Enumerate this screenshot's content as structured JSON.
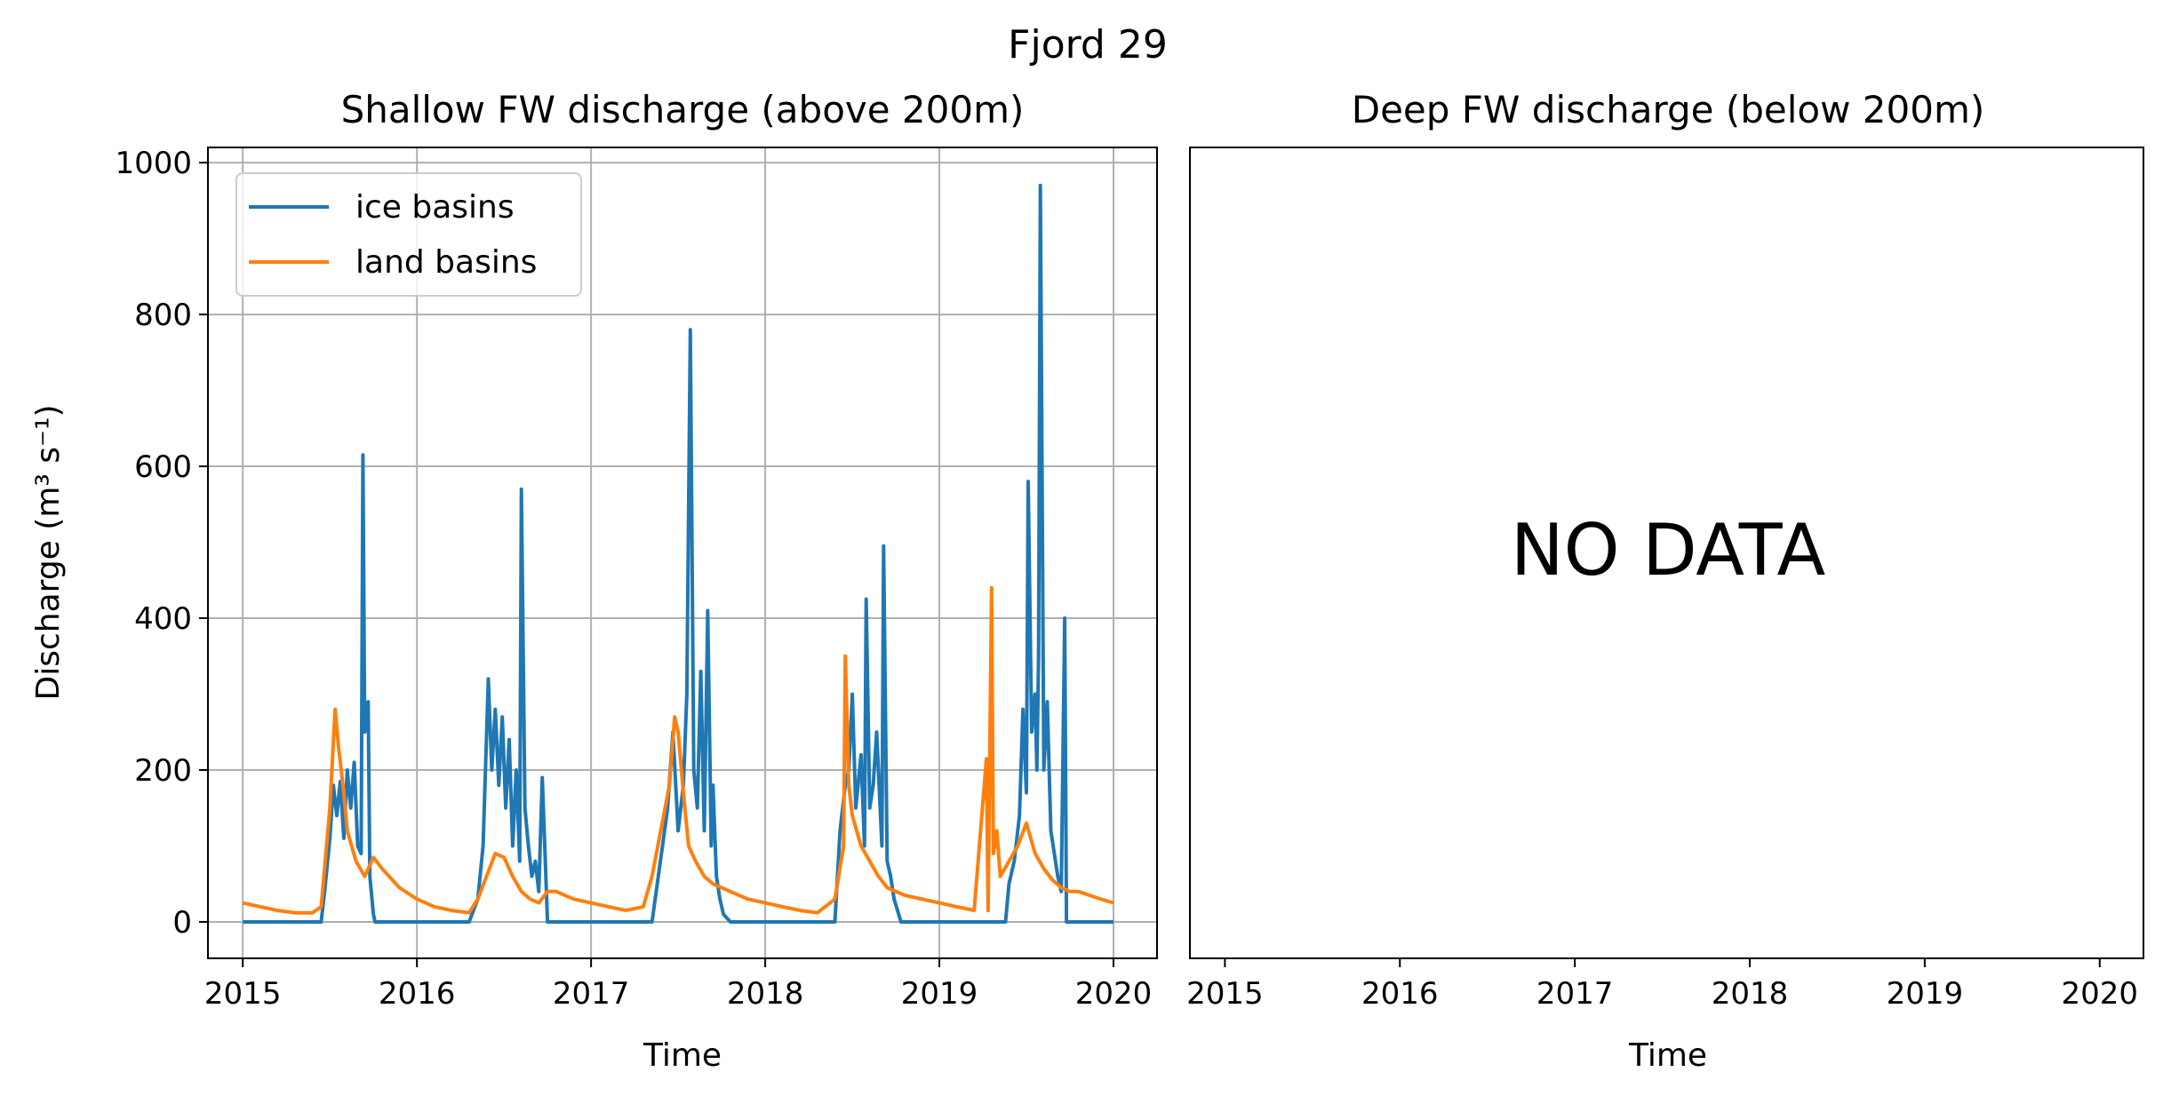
{
  "figure": {
    "suptitle": "Fjord 29",
    "background": "#ffffff"
  },
  "chart_data": [
    {
      "type": "line",
      "title": "Shallow FW discharge (above 200m)",
      "xlabel": "Time",
      "ylabel": "Discharge (m³ s⁻¹)",
      "xlim": [
        2014.8,
        2020.25
      ],
      "ylim": [
        -48,
        1020
      ],
      "xticks": [
        2015,
        2016,
        2017,
        2018,
        2019,
        2020
      ],
      "xtick_labels": [
        "2015",
        "2016",
        "2017",
        "2018",
        "2019",
        "2020"
      ],
      "yticks": [
        0,
        200,
        400,
        600,
        800,
        1000
      ],
      "ytick_labels": [
        "0",
        "200",
        "400",
        "600",
        "800",
        "1000"
      ],
      "grid": true,
      "legend_position": "upper-left",
      "series": [
        {
          "name": "ice basins",
          "color": "#1f77b4",
          "x": [
            2015.0,
            2015.45,
            2015.47,
            2015.5,
            2015.52,
            2015.54,
            2015.56,
            2015.58,
            2015.6,
            2015.62,
            2015.64,
            2015.66,
            2015.68,
            2015.69,
            2015.7,
            2015.72,
            2015.73,
            2015.75,
            2015.76,
            2015.78,
            2015.8,
            2016.0,
            2016.3,
            2016.35,
            2016.38,
            2016.41,
            2016.43,
            2016.45,
            2016.47,
            2016.49,
            2016.51,
            2016.53,
            2016.55,
            2016.57,
            2016.59,
            2016.6,
            2016.62,
            2016.64,
            2016.66,
            2016.68,
            2016.7,
            2016.72,
            2016.75,
            2016.77,
            2016.8,
            2017.0,
            2017.35,
            2017.38,
            2017.41,
            2017.44,
            2017.47,
            2017.5,
            2017.53,
            2017.55,
            2017.57,
            2017.59,
            2017.61,
            2017.63,
            2017.65,
            2017.67,
            2017.69,
            2017.7,
            2017.72,
            2017.74,
            2017.76,
            2017.8,
            2017.82,
            2018.0,
            2018.4,
            2018.43,
            2018.46,
            2018.48,
            2018.5,
            2018.52,
            2018.55,
            2018.57,
            2018.58,
            2018.6,
            2018.62,
            2018.64,
            2018.67,
            2018.68,
            2018.7,
            2018.72,
            2018.74,
            2018.78,
            2019.0,
            2019.35,
            2019.38,
            2019.4,
            2019.43,
            2019.46,
            2019.48,
            2019.5,
            2019.51,
            2019.53,
            2019.55,
            2019.56,
            2019.57,
            2019.58,
            2019.6,
            2019.62,
            2019.64,
            2019.66,
            2019.68,
            2019.7,
            2019.72,
            2019.73,
            2019.75,
            2019.78,
            2020.0
          ],
          "y": [
            0,
            0,
            40,
            110,
            180,
            140,
            185,
            110,
            200,
            150,
            210,
            100,
            90,
            615,
            250,
            290,
            60,
            10,
            0,
            0,
            0,
            0,
            0,
            30,
            100,
            320,
            200,
            280,
            180,
            270,
            150,
            240,
            100,
            200,
            80,
            570,
            150,
            100,
            60,
            80,
            40,
            190,
            0,
            0,
            0,
            0,
            0,
            50,
            100,
            150,
            250,
            120,
            180,
            300,
            780,
            200,
            150,
            330,
            120,
            410,
            100,
            180,
            60,
            30,
            10,
            0,
            0,
            0,
            0,
            120,
            180,
            200,
            300,
            150,
            220,
            100,
            425,
            150,
            180,
            250,
            100,
            495,
            80,
            60,
            30,
            0,
            0,
            0,
            0,
            50,
            80,
            140,
            280,
            170,
            580,
            250,
            300,
            200,
            350,
            970,
            200,
            290,
            120,
            90,
            60,
            40,
            400,
            0,
            0,
            0,
            0
          ]
        },
        {
          "name": "land basins",
          "color": "#ff7f0e",
          "x": [
            2015.0,
            2015.1,
            2015.2,
            2015.3,
            2015.4,
            2015.45,
            2015.5,
            2015.53,
            2015.55,
            2015.58,
            2015.6,
            2015.65,
            2015.7,
            2015.75,
            2015.8,
            2015.9,
            2016.0,
            2016.1,
            2016.2,
            2016.3,
            2016.35,
            2016.4,
            2016.45,
            2016.5,
            2016.55,
            2016.6,
            2016.65,
            2016.7,
            2016.75,
            2016.8,
            2016.9,
            2017.0,
            2017.1,
            2017.2,
            2017.3,
            2017.35,
            2017.4,
            2017.45,
            2017.48,
            2017.5,
            2017.53,
            2017.56,
            2017.6,
            2017.65,
            2017.7,
            2017.75,
            2017.8,
            2017.9,
            2018.0,
            2018.1,
            2018.2,
            2018.3,
            2018.4,
            2018.45,
            2018.46,
            2018.48,
            2018.5,
            2018.55,
            2018.6,
            2018.65,
            2018.7,
            2018.8,
            2018.9,
            2019.0,
            2019.1,
            2019.2,
            2019.27,
            2019.28,
            2019.3,
            2019.31,
            2019.33,
            2019.35,
            2019.4,
            2019.45,
            2019.5,
            2019.55,
            2019.6,
            2019.65,
            2019.7,
            2019.75,
            2019.8,
            2019.9,
            2020.0
          ],
          "y": [
            25,
            20,
            15,
            12,
            12,
            20,
            150,
            280,
            230,
            170,
            120,
            80,
            60,
            85,
            70,
            45,
            30,
            20,
            15,
            12,
            30,
            60,
            90,
            85,
            60,
            40,
            30,
            25,
            40,
            40,
            30,
            25,
            20,
            15,
            20,
            60,
            120,
            180,
            270,
            250,
            170,
            100,
            80,
            60,
            50,
            45,
            40,
            30,
            25,
            20,
            15,
            12,
            30,
            100,
            350,
            180,
            140,
            100,
            80,
            60,
            45,
            35,
            30,
            25,
            20,
            15,
            215,
            15,
            440,
            90,
            120,
            60,
            80,
            100,
            130,
            90,
            70,
            55,
            45,
            40,
            40,
            32,
            25
          ]
        }
      ]
    },
    {
      "type": "line",
      "title": "Deep FW discharge (below 200m)",
      "xlabel": "Time",
      "ylabel": "",
      "xlim": [
        2014.8,
        2020.25
      ],
      "xticks": [
        2015,
        2016,
        2017,
        2018,
        2019,
        2020
      ],
      "xtick_labels": [
        "2015",
        "2016",
        "2017",
        "2018",
        "2019",
        "2020"
      ],
      "grid": false,
      "annotation": "NO DATA",
      "series": []
    }
  ]
}
